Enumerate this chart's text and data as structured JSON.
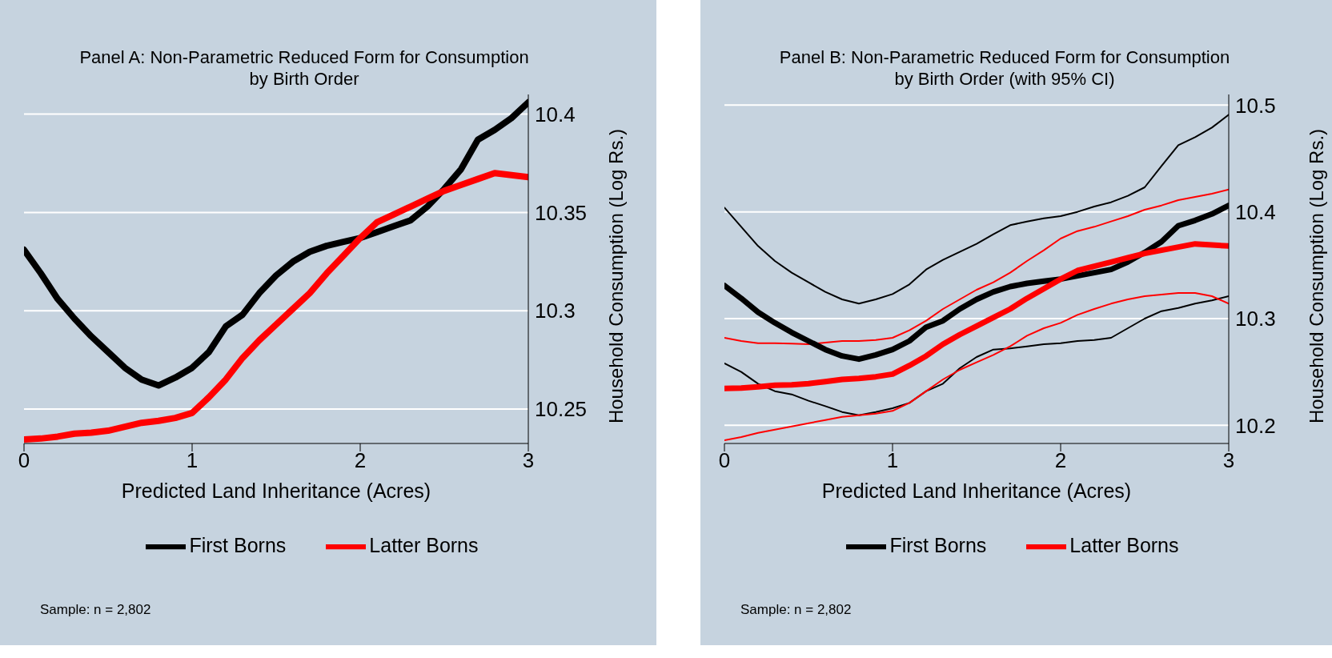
{
  "chart_data": [
    {
      "type": "line",
      "title": "Panel A: Non-Parametric Reduced Form for Consumption\nby Birth Order",
      "xlabel": "Predicted Land Inheritance (Acres)",
      "ylabel": "Household Consumption (Log Rs.)",
      "x": [
        0,
        0.1,
        0.2,
        0.3,
        0.4,
        0.5,
        0.6,
        0.7,
        0.8,
        0.9,
        1,
        1.1,
        1.2,
        1.3,
        1.4,
        1.5,
        1.6,
        1.7,
        1.8,
        1.9,
        2,
        2.1,
        2.2,
        2.3,
        2.4,
        2.5,
        2.6,
        2.7,
        2.8,
        2.9,
        3
      ],
      "series": [
        {
          "name": "First Borns",
          "color": "#000000",
          "values": [
            10.331,
            10.319,
            10.306,
            10.296,
            10.287,
            10.279,
            10.271,
            10.265,
            10.262,
            10.266,
            10.271,
            10.279,
            10.292,
            10.298,
            10.309,
            10.318,
            10.325,
            10.33,
            10.333,
            10.335,
            10.337,
            10.34,
            10.343,
            10.346,
            10.353,
            10.362,
            10.372,
            10.387,
            10.392,
            10.398,
            10.406
          ]
        },
        {
          "name": "Latter Borns",
          "color": "#ff0000",
          "values": [
            10.2345,
            10.235,
            10.236,
            10.2375,
            10.238,
            10.239,
            10.241,
            10.243,
            10.244,
            10.2455,
            10.248,
            10.256,
            10.265,
            10.276,
            10.285,
            10.293,
            10.301,
            10.309,
            10.319,
            10.328,
            10.337,
            10.345,
            10.349,
            10.353,
            10.357,
            10.361,
            10.364,
            10.367,
            10.37,
            10.369,
            10.368
          ]
        }
      ],
      "xlim": [
        0,
        3
      ],
      "xticks": [
        0,
        1,
        2,
        3
      ],
      "ylim": [
        10.2325,
        10.41
      ],
      "yticks": [
        10.25,
        10.3,
        10.35,
        10.4
      ],
      "grid": "y",
      "legend": "bottom",
      "annotations": [
        "Sample: n = 2,802"
      ]
    },
    {
      "type": "line",
      "title": "Panel B: Non-Parametric Reduced Form for Consumption\nby Birth Order (with 95% CI)",
      "xlabel": "Predicted Land Inheritance (Acres)",
      "ylabel": "Household Consumption (Log Rs.)",
      "x": [
        0,
        0.1,
        0.2,
        0.3,
        0.4,
        0.5,
        0.6,
        0.7,
        0.8,
        0.9,
        1,
        1.1,
        1.2,
        1.3,
        1.4,
        1.5,
        1.6,
        1.7,
        1.8,
        1.9,
        2,
        2.1,
        2.2,
        2.3,
        2.4,
        2.5,
        2.6,
        2.7,
        2.8,
        2.9,
        3
      ],
      "series": [
        {
          "color": "#000000",
          "values": [
            10.258,
            10.25,
            10.239,
            10.232,
            10.229,
            10.223,
            10.218,
            10.2125,
            10.2095,
            10.2125,
            10.216,
            10.221,
            10.232,
            10.239,
            10.2535,
            10.264,
            10.271,
            10.272,
            10.274,
            10.276,
            10.277,
            10.279,
            10.28,
            10.282,
            10.291,
            10.3,
            10.307,
            10.31,
            10.314,
            10.317,
            10.321
          ]
        },
        {
          "color": "#000000",
          "values": [
            10.404,
            10.386,
            10.368,
            10.354,
            10.343,
            10.334,
            10.325,
            10.318,
            10.314,
            10.318,
            10.323,
            10.332,
            10.346,
            10.355,
            10.3625,
            10.37,
            10.379,
            10.3875,
            10.391,
            10.394,
            10.396,
            10.4,
            10.405,
            10.409,
            10.415,
            10.423,
            10.443,
            10.4625,
            10.47,
            10.479,
            10.491
          ]
        },
        {
          "color": "#ff0000",
          "values": [
            10.186,
            10.189,
            10.193,
            10.196,
            10.199,
            10.202,
            10.205,
            10.208,
            10.2095,
            10.211,
            10.2135,
            10.221,
            10.232,
            10.243,
            10.252,
            10.259,
            10.266,
            10.274,
            10.284,
            10.291,
            10.296,
            10.3035,
            10.309,
            10.314,
            10.318,
            10.321,
            10.3225,
            10.324,
            10.324,
            10.321,
            10.314
          ]
        },
        {
          "color": "#ff0000",
          "values": [
            10.282,
            10.279,
            10.277,
            10.277,
            10.2765,
            10.276,
            10.2775,
            10.279,
            10.279,
            10.28,
            10.282,
            10.289,
            10.298,
            10.309,
            10.318,
            10.327,
            10.334,
            10.343,
            10.354,
            10.364,
            10.375,
            10.382,
            10.386,
            10.391,
            10.396,
            10.402,
            10.406,
            10.411,
            10.414,
            10.417,
            10.421
          ]
        },
        {
          "name": "First Borns",
          "color": "#000000",
          "values": [
            10.331,
            10.319,
            10.306,
            10.296,
            10.287,
            10.279,
            10.271,
            10.265,
            10.262,
            10.266,
            10.271,
            10.279,
            10.292,
            10.298,
            10.309,
            10.318,
            10.325,
            10.33,
            10.333,
            10.335,
            10.337,
            10.34,
            10.343,
            10.346,
            10.353,
            10.362,
            10.372,
            10.387,
            10.392,
            10.398,
            10.406
          ]
        },
        {
          "name": "Latter Borns",
          "color": "#ff0000",
          "values": [
            10.2345,
            10.235,
            10.236,
            10.2375,
            10.238,
            10.239,
            10.241,
            10.243,
            10.244,
            10.2455,
            10.248,
            10.256,
            10.265,
            10.276,
            10.285,
            10.293,
            10.301,
            10.309,
            10.319,
            10.328,
            10.337,
            10.345,
            10.349,
            10.353,
            10.357,
            10.361,
            10.364,
            10.367,
            10.37,
            10.369,
            10.368
          ]
        }
      ],
      "xlim": [
        0,
        3
      ],
      "xticks": [
        0,
        1,
        2,
        3
      ],
      "ylim": [
        10.183,
        10.51
      ],
      "yticks": [
        10.2,
        10.3,
        10.4,
        10.5
      ],
      "grid": "y",
      "legend": "bottom",
      "annotations": [
        "Sample: n = 2,802"
      ]
    }
  ]
}
